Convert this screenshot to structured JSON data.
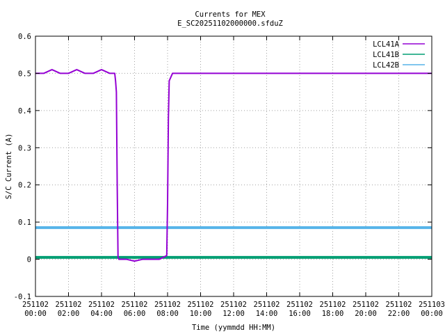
{
  "chart_data": {
    "type": "line",
    "title": "Currents for MEX",
    "subtitle": "E_SC20251102000000.sfduZ",
    "xlabel": "Time (yymmdd HH:MM)",
    "ylabel": "S/C Current (A)",
    "xlim": [
      0,
      24
    ],
    "ylim": [
      -0.1,
      0.6
    ],
    "grid": true,
    "legend_position": "top-right",
    "yticks": [
      -0.1,
      0,
      0.1,
      0.2,
      0.3,
      0.4,
      0.5,
      0.6
    ],
    "ytick_labels": [
      "-0.1",
      "0",
      "0.1",
      "0.2",
      "0.3",
      "0.4",
      "0.5",
      "0.6"
    ],
    "xticks": [
      0,
      2,
      4,
      6,
      8,
      10,
      12,
      14,
      16,
      18,
      20,
      22,
      24
    ],
    "xtick_labels": [
      [
        "251102",
        "00:00"
      ],
      [
        "251102",
        "02:00"
      ],
      [
        "251102",
        "04:00"
      ],
      [
        "251102",
        "06:00"
      ],
      [
        "251102",
        "08:00"
      ],
      [
        "251102",
        "10:00"
      ],
      [
        "251102",
        "12:00"
      ],
      [
        "251102",
        "14:00"
      ],
      [
        "251102",
        "16:00"
      ],
      [
        "251102",
        "18:00"
      ],
      [
        "251102",
        "20:00"
      ],
      [
        "251102",
        "22:00"
      ],
      [
        "251103",
        "00:00"
      ]
    ],
    "series": [
      {
        "name": "LCL41A",
        "color": "#9400d3",
        "x": [
          0,
          0.5,
          1,
          1.5,
          2,
          2.5,
          3,
          3.5,
          4,
          4.5,
          4.8,
          4.85,
          4.9,
          4.95,
          5.0,
          5.05,
          5.5,
          6,
          6.5,
          7,
          7.5,
          7.95,
          8.0,
          8.05,
          8.1,
          8.3,
          8.5,
          9,
          9.5,
          10,
          11,
          12,
          13,
          14,
          15,
          16,
          17,
          18,
          19,
          20,
          21,
          22,
          23,
          24
        ],
        "y": [
          0.5,
          0.5,
          0.51,
          0.5,
          0.5,
          0.51,
          0.5,
          0.5,
          0.51,
          0.5,
          0.5,
          0.48,
          0.45,
          0.2,
          0.005,
          0.0,
          0.0,
          -0.005,
          0.0,
          0.0,
          0.0,
          0.01,
          0.15,
          0.38,
          0.48,
          0.5,
          0.5,
          0.5,
          0.5,
          0.5,
          0.5,
          0.5,
          0.5,
          0.5,
          0.5,
          0.5,
          0.5,
          0.5,
          0.5,
          0.5,
          0.5,
          0.5,
          0.5,
          0.5
        ]
      },
      {
        "name": "LCL41B",
        "color": "#009e73",
        "x": [
          0,
          24
        ],
        "y": [
          0.005,
          0.005
        ]
      },
      {
        "name": "LCL42B",
        "color": "#56b4e9",
        "x": [
          0,
          24
        ],
        "y": [
          0.085,
          0.085
        ]
      }
    ]
  }
}
